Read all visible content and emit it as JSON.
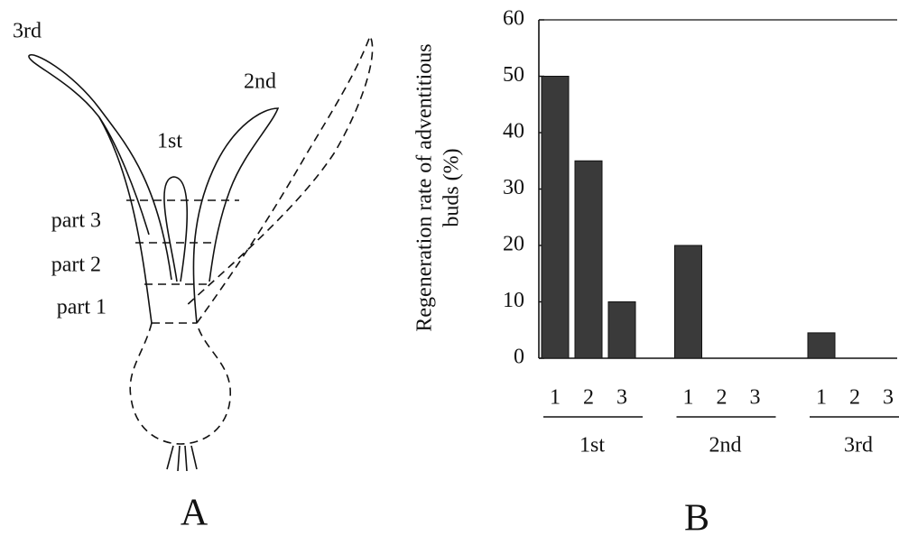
{
  "panel_a": {
    "label": "A",
    "leaf_labels": [
      "3rd",
      "2nd",
      "1st"
    ],
    "part_labels": [
      "part 3",
      "part 2",
      "part 1"
    ]
  },
  "chart_data": {
    "type": "bar",
    "panel_label": "B",
    "ylabel": [
      "Regeneration rate of adventitious",
      "buds (%)"
    ],
    "categories": [
      "1",
      "2",
      "3",
      "1",
      "2",
      "3",
      "1",
      "2",
      "3"
    ],
    "groups": [
      "1st",
      "2nd",
      "3rd"
    ],
    "values": [
      50,
      35,
      10,
      20,
      0,
      0,
      4.5,
      0,
      0
    ],
    "color": "#3a3a3a",
    "ylim": [
      0,
      60
    ],
    "yticks": [
      0,
      10,
      20,
      30,
      40,
      50,
      60
    ]
  }
}
